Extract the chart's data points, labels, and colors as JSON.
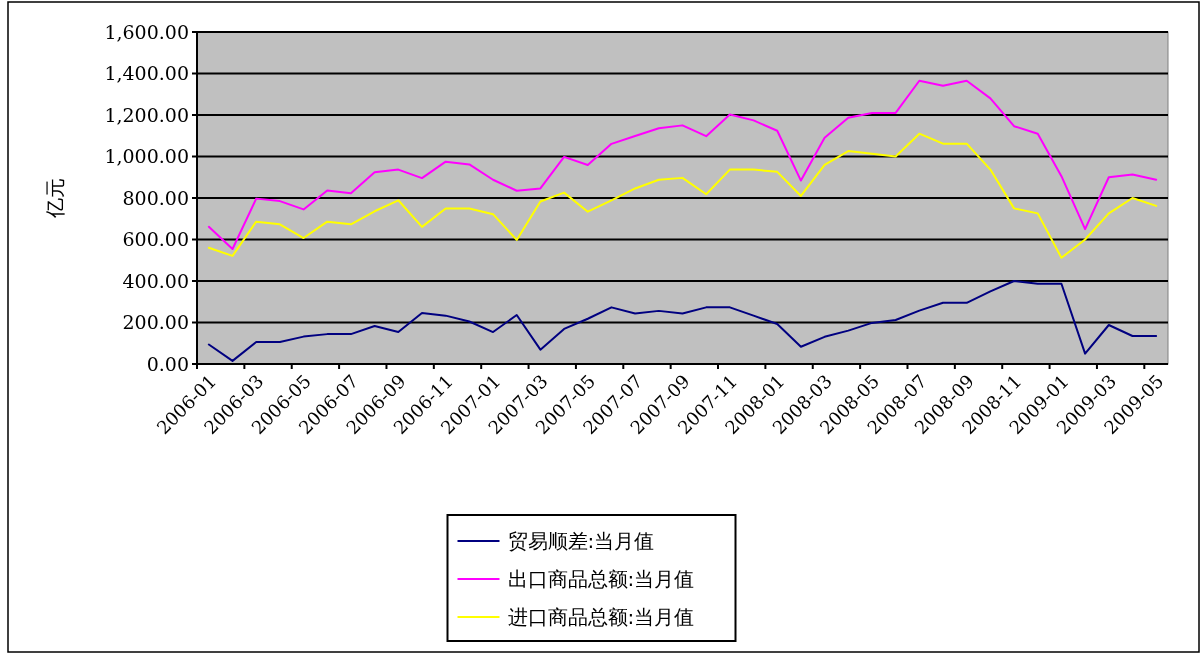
{
  "chart_data": {
    "type": "line",
    "ylabel": "亿元",
    "categories": [
      "2006-01",
      null,
      "2006-03",
      null,
      "2006-05",
      null,
      "2006-07",
      null,
      "2006-09",
      null,
      "2006-11",
      null,
      "2007-01",
      null,
      "2007-03",
      null,
      "2007-05",
      null,
      "2007-07",
      null,
      "2007-09",
      null,
      "2007-11",
      null,
      "2008-01",
      null,
      "2008-03",
      null,
      "2008-05",
      null,
      "2008-07",
      null,
      "2008-09",
      null,
      "2008-11",
      null,
      "2009-01",
      null,
      "2009-03",
      null,
      "2009-05"
    ],
    "series": [
      {
        "name": "贸易顺差:当月值",
        "color": "#000080",
        "values": [
          94,
          15,
          106,
          106,
          132,
          144,
          144,
          183,
          154,
          246,
          233,
          205,
          154,
          236,
          69,
          169,
          218,
          273,
          243,
          256,
          243,
          273,
          273,
          233,
          193,
          83,
          131,
          161,
          198,
          212,
          257,
          295,
          295,
          350,
          400,
          387,
          387,
          50,
          188,
          135,
          135
        ]
      },
      {
        "name": "出口商品总额:当月值",
        "color": "#ff00ff",
        "values": [
          661,
          554,
          797,
          785,
          745,
          836,
          823,
          924,
          937,
          896,
          975,
          962,
          888,
          835,
          846,
          998,
          959,
          1061,
          1099,
          1136,
          1150,
          1098,
          1202,
          1174,
          1124,
          884,
          1090,
          1187,
          1210,
          1210,
          1365,
          1341,
          1365,
          1280,
          1146,
          1110,
          905,
          650,
          900,
          913,
          888
        ]
      },
      {
        "name": "进口商品总额:当月值",
        "color": "#ffff00",
        "values": [
          560,
          521,
          686,
          673,
          607,
          686,
          673,
          736,
          789,
          661,
          749,
          749,
          722,
          598,
          783,
          826,
          734,
          789,
          846,
          888,
          897,
          818,
          937,
          937,
          926,
          810,
          960,
          1026,
          1013,
          1000,
          1110,
          1062,
          1062,
          937,
          750,
          726,
          512,
          600,
          726,
          800,
          762
        ]
      }
    ],
    "ylim": [
      0,
      1600
    ],
    "yticks": [
      {
        "value": 0,
        "label": "0.00"
      },
      {
        "value": 200,
        "label": "200.00"
      },
      {
        "value": 400,
        "label": "400.00"
      },
      {
        "value": 600,
        "label": "600.00"
      },
      {
        "value": 800,
        "label": "800.00"
      },
      {
        "value": 1000,
        "label": "1,000.00"
      },
      {
        "value": 1200,
        "label": "1,200.00"
      },
      {
        "value": 1400,
        "label": "1,400.00"
      },
      {
        "value": 1600,
        "label": "1,600.00"
      }
    ],
    "grid": "y",
    "legend": "bottom",
    "marker": "none",
    "line_style": "solid"
  }
}
